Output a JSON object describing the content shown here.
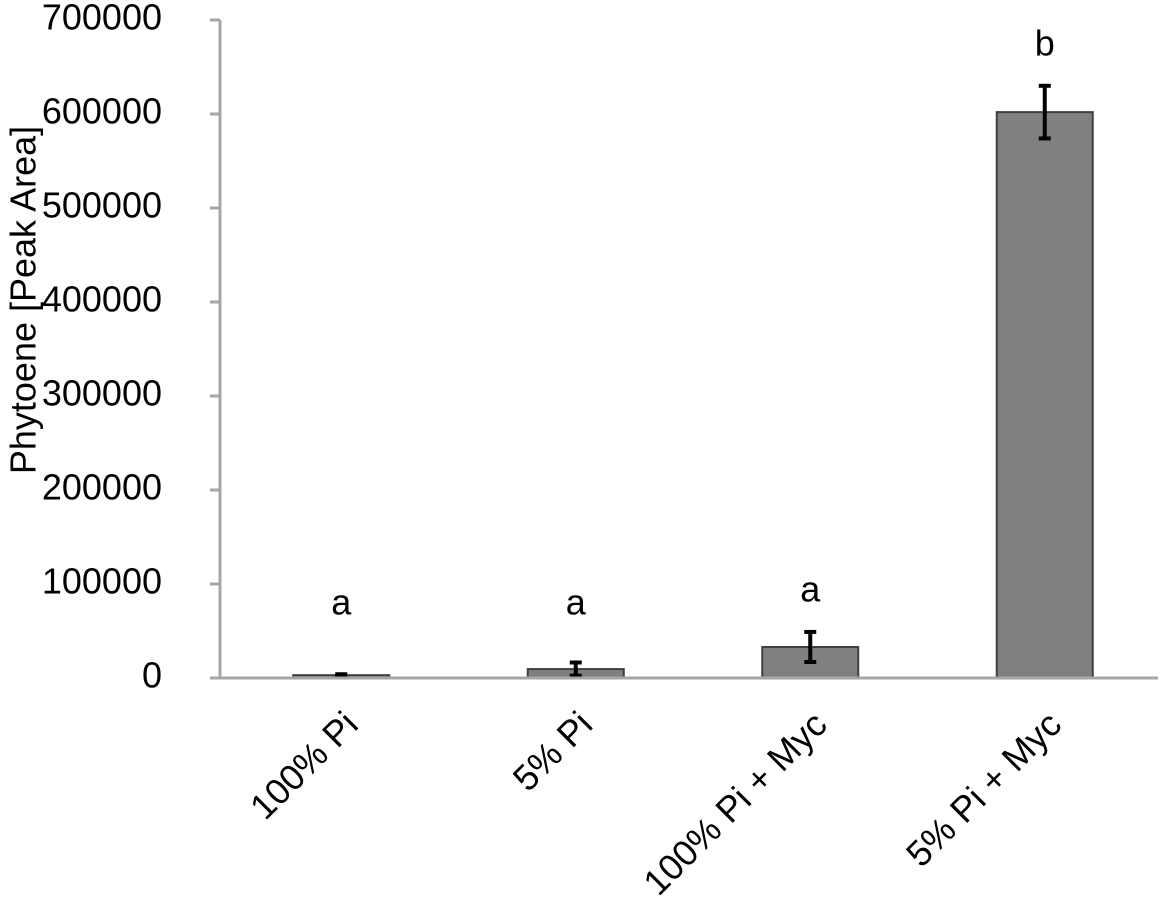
{
  "chart_data": {
    "type": "bar",
    "y_label": "Phytoene [Peak Area]",
    "categories": [
      "100% Pi",
      "5% Pi",
      "100% Pi + Myc",
      "5% Pi + Myc"
    ],
    "values": [
      3000,
      9500,
      33000,
      602000
    ],
    "errors": [
      1000,
      7000,
      16000,
      28000
    ],
    "annotations": [
      "a",
      "a",
      "a",
      "b"
    ],
    "color": "#808080",
    "ylim": [
      0,
      700000
    ],
    "yticks": [
      0,
      100000,
      200000,
      300000,
      400000,
      500000,
      600000,
      700000
    ],
    "grid": false
  }
}
